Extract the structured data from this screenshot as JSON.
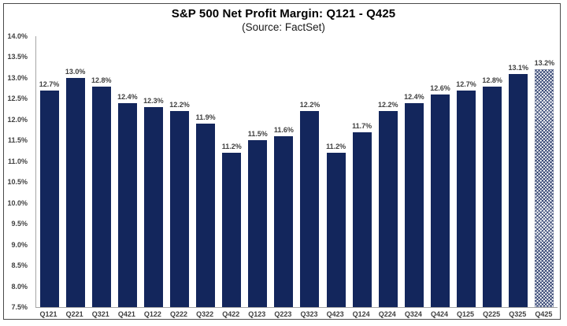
{
  "page": {
    "background": "#ffffff",
    "frame_border_color": "#4a4a4a"
  },
  "chart_data": {
    "type": "bar",
    "title": "S&P 500 Net Profit Margin: Q121 - Q425",
    "subtitle": "(Source: FactSet)",
    "categories": [
      "Q121",
      "Q221",
      "Q321",
      "Q421",
      "Q122",
      "Q222",
      "Q322",
      "Q422",
      "Q123",
      "Q223",
      "Q323",
      "Q423",
      "Q124",
      "Q224",
      "Q324",
      "Q424",
      "Q125",
      "Q225",
      "Q325",
      "Q425"
    ],
    "values": [
      12.7,
      13.0,
      12.8,
      12.4,
      12.3,
      12.2,
      11.9,
      11.2,
      11.5,
      11.6,
      12.2,
      11.2,
      11.7,
      12.2,
      12.4,
      12.6,
      12.7,
      12.8,
      13.1,
      13.2
    ],
    "value_labels": [
      "12.7%",
      "13.0%",
      "12.8%",
      "12.4%",
      "12.3%",
      "12.2%",
      "11.9%",
      "11.2%",
      "11.5%",
      "11.6%",
      "12.2%",
      "11.2%",
      "11.7%",
      "12.2%",
      "12.4%",
      "12.6%",
      "12.7%",
      "12.8%",
      "13.1%",
      "13.2%"
    ],
    "xlabel": "",
    "ylabel": "",
    "ylim": [
      7.5,
      14.0
    ],
    "ytick_step": 0.5,
    "ytick_labels": [
      "14.0%",
      "13.5%",
      "13.0%",
      "12.5%",
      "12.0%",
      "11.5%",
      "11.0%",
      "10.5%",
      "10.0%",
      "9.5%",
      "9.0%",
      "8.5%",
      "8.0%",
      "7.5%"
    ],
    "grid": false,
    "legend": false,
    "bar_color": "#13265c",
    "estimate_bar": {
      "category": "Q425",
      "style": "crosshatch"
    },
    "label_color": "#3f3f3f",
    "axis_line_color": "#a6a6a6"
  }
}
